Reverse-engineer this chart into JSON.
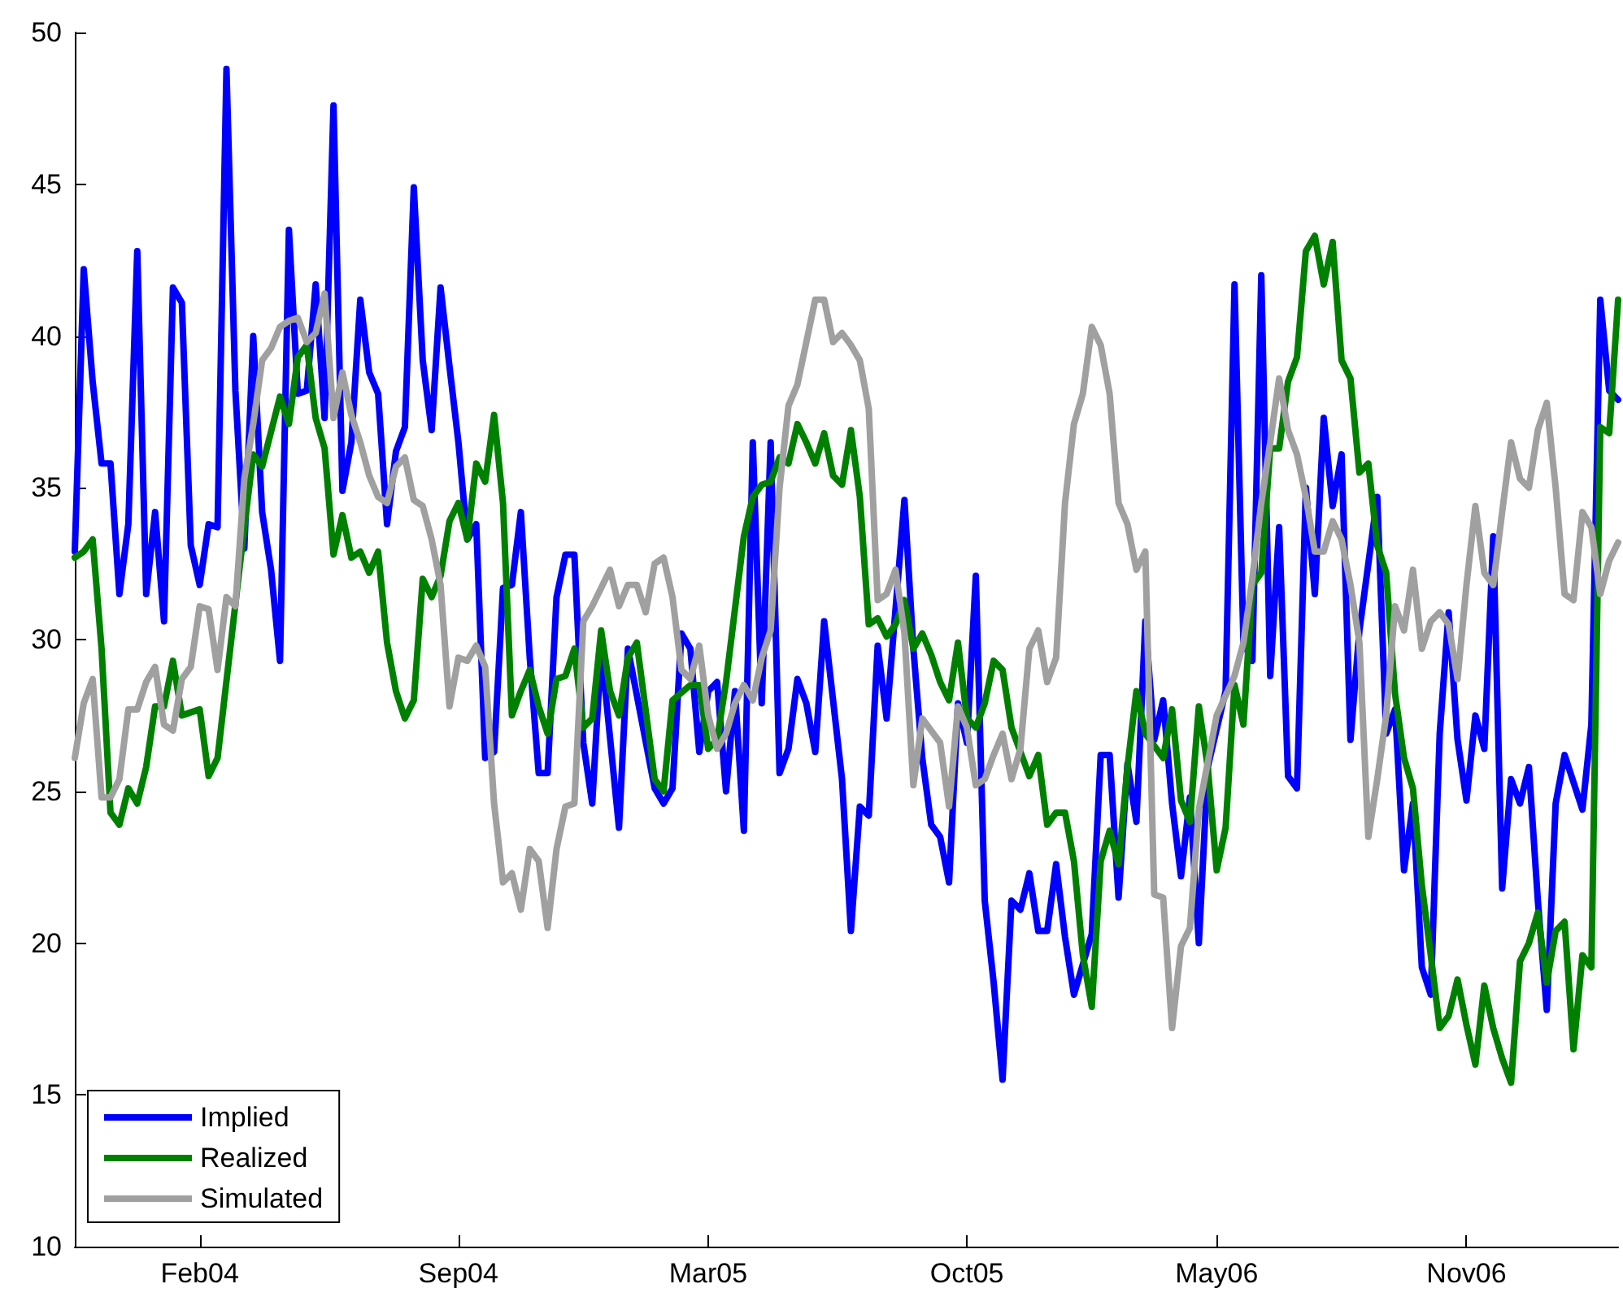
{
  "chart_data": {
    "type": "line",
    "ylim": [
      10,
      50
    ],
    "categories": [
      null,
      null,
      null,
      null,
      null,
      null,
      null,
      null,
      null,
      null,
      null,
      null,
      null,
      null,
      "Feb04",
      null,
      null,
      null,
      null,
      null,
      null,
      null,
      null,
      null,
      null,
      null,
      null,
      null,
      null,
      null,
      null,
      null,
      null,
      null,
      null,
      null,
      null,
      null,
      null,
      null,
      null,
      null,
      null,
      "Sep04",
      null,
      null,
      null,
      null,
      null,
      null,
      null,
      null,
      null,
      null,
      null,
      null,
      null,
      null,
      null,
      null,
      null,
      null,
      null,
      null,
      null,
      null,
      null,
      null,
      null,
      null,
      null,
      "Mar05",
      null,
      null,
      null,
      null,
      null,
      null,
      null,
      null,
      null,
      null,
      null,
      null,
      null,
      null,
      null,
      null,
      null,
      null,
      null,
      null,
      null,
      null,
      null,
      null,
      null,
      null,
      null,
      null,
      "Oct05",
      null,
      null,
      null,
      null,
      null,
      null,
      null,
      null,
      null,
      null,
      null,
      null,
      null,
      null,
      null,
      null,
      null,
      null,
      null,
      null,
      null,
      null,
      null,
      null,
      null,
      null,
      null,
      "May06",
      null,
      null,
      null,
      null,
      null,
      null,
      null,
      null,
      null,
      null,
      null,
      null,
      null,
      null,
      null,
      null,
      null,
      null,
      null,
      null,
      null,
      null,
      null,
      null,
      null,
      null,
      null,
      "Nov06",
      null,
      null,
      null,
      null,
      null,
      null,
      null,
      null,
      null,
      null,
      null,
      null,
      null,
      null,
      null,
      null,
      null
    ],
    "yticks": [
      10,
      15,
      20,
      25,
      30,
      35,
      40,
      45,
      50
    ],
    "legend": "bottom left",
    "marker": "none",
    "line_style": "solid",
    "series": [
      {
        "name": "Implied",
        "color": "#0000ff",
        "values": [
          32.9,
          42.2,
          38.5,
          35.8,
          35.8,
          31.5,
          33.8,
          42.8,
          31.5,
          34.2,
          30.6,
          41.6,
          41.1,
          33.1,
          31.8,
          33.8,
          33.7,
          48.8,
          38.2,
          33.0,
          40.0,
          34.2,
          32.3,
          29.3,
          43.5,
          38.1,
          38.2,
          41.7,
          37.3,
          47.6,
          34.9,
          36.5,
          41.2,
          38.8,
          38.1,
          33.8,
          36.2,
          37.0,
          44.9,
          39.2,
          36.9,
          41.6,
          39.0,
          36.5,
          33.3,
          33.8,
          26.1,
          26.3,
          31.7,
          31.8,
          34.2,
          29.4,
          25.6,
          25.6,
          31.4,
          32.8,
          32.8,
          26.6,
          24.6,
          29.7,
          null,
          23.8,
          29.7,
          null,
          null,
          25.1,
          24.6,
          25.1,
          30.2,
          29.7,
          26.3,
          28.3,
          28.6,
          25.0,
          28.3,
          23.7,
          36.5,
          27.9,
          36.5,
          25.6,
          26.4,
          28.7,
          27.9,
          26.3,
          30.6,
          28.0,
          25.4,
          20.4,
          24.5,
          24.2,
          29.8,
          27.4,
          null,
          34.6,
          29.7,
          26.1,
          23.9,
          23.5,
          22.0,
          27.9,
          26.6,
          32.1,
          21.4,
          18.7,
          15.5,
          21.4,
          21.1,
          22.3,
          20.4,
          20.4,
          22.6,
          20.2,
          18.3,
          null,
          20.3,
          26.2,
          26.2,
          21.5,
          25.9,
          24.0,
          30.6,
          26.7,
          28.0,
          24.6,
          22.2,
          24.8,
          20.0,
          25.8,
          null,
          28.3,
          41.7,
          29.9,
          29.3,
          42.0,
          28.8,
          33.7,
          25.5,
          25.1,
          35.0,
          31.5,
          37.3,
          34.4,
          36.1,
          26.7,
          30.3,
          null,
          34.7,
          26.9,
          27.7,
          22.4,
          24.6,
          19.2,
          18.3,
          26.9,
          30.9,
          26.7,
          24.7,
          27.5,
          26.4,
          33.4,
          21.8,
          25.4,
          24.6,
          25.8,
          21.4,
          17.8,
          24.6,
          26.2,
          null,
          24.4,
          27.2,
          41.2,
          38.2,
          37.9
        ]
      },
      {
        "name": "Realized",
        "color": "#008000",
        "values": [
          32.7,
          32.9,
          33.3,
          29.7,
          24.3,
          23.9,
          25.1,
          24.6,
          25.8,
          27.8,
          27.8,
          29.3,
          27.5,
          null,
          27.7,
          25.5,
          26.1,
          null,
          null,
          33.7,
          36.1,
          35.7,
          null,
          38.0,
          37.1,
          39.3,
          39.7,
          37.3,
          36.3,
          32.8,
          34.1,
          32.7,
          32.9,
          32.2,
          32.9,
          29.9,
          28.3,
          27.4,
          28.0,
          32.0,
          31.4,
          32.1,
          33.9,
          34.5,
          33.3,
          35.8,
          35.2,
          37.4,
          34.5,
          27.5,
          28.3,
          29.0,
          27.8,
          26.9,
          28.7,
          28.8,
          29.7,
          27.1,
          27.4,
          30.3,
          28.3,
          27.5,
          29.4,
          29.9,
          null,
          25.4,
          25.0,
          28.0,
          null,
          28.5,
          28.5,
          26.4,
          26.7,
          28.6,
          null,
          33.4,
          34.7,
          35.1,
          35.2,
          36.0,
          35.8,
          37.1,
          36.5,
          35.8,
          36.8,
          35.4,
          35.1,
          36.9,
          34.7,
          30.5,
          30.7,
          30.1,
          30.5,
          31.3,
          29.7,
          30.2,
          29.5,
          28.6,
          28.0,
          29.9,
          27.4,
          27.1,
          27.9,
          29.3,
          29.0,
          27.1,
          26.3,
          25.5,
          26.2,
          23.9,
          24.3,
          24.3,
          22.7,
          19.6,
          17.9,
          22.7,
          23.7,
          22.6,
          25.8,
          28.3,
          26.9,
          null,
          26.1,
          27.7,
          24.7,
          24.0,
          27.8,
          25.8,
          22.4,
          23.8,
          28.5,
          27.2,
          31.8,
          32.2,
          36.3,
          36.3,
          38.5,
          39.3,
          42.8,
          43.3,
          41.7,
          43.1,
          39.2,
          38.6,
          35.5,
          35.8,
          33.1,
          32.2,
          28.2,
          26.1,
          25.1,
          21.9,
          19.6,
          17.2,
          17.6,
          18.8,
          17.3,
          16.0,
          18.6,
          17.2,
          16.2,
          15.4,
          19.4,
          20.0,
          21.0,
          18.7,
          20.4,
          20.7,
          16.5,
          19.6,
          19.2,
          37.0,
          36.8,
          41.2
        ]
      },
      {
        "name": "Simulated",
        "color": "#a0a0a0",
        "values": [
          26.1,
          27.9,
          28.7,
          24.8,
          24.8,
          25.4,
          27.7,
          27.7,
          28.6,
          29.1,
          27.2,
          27.0,
          28.7,
          29.1,
          31.1,
          31.0,
          29.0,
          31.4,
          31.1,
          35.3,
          37.1,
          39.2,
          39.6,
          40.3,
          40.5,
          40.6,
          39.8,
          40.1,
          41.4,
          37.3,
          38.8,
          37.4,
          36.5,
          35.4,
          34.7,
          34.5,
          35.7,
          36.0,
          34.6,
          34.4,
          33.3,
          31.8,
          27.8,
          29.4,
          29.3,
          29.8,
          29.1,
          24.6,
          22.0,
          22.3,
          21.1,
          23.1,
          22.7,
          20.5,
          23.1,
          24.5,
          24.6,
          30.6,
          31.1,
          null,
          32.3,
          31.1,
          31.8,
          31.8,
          30.9,
          32.5,
          32.7,
          31.4,
          29.0,
          28.7,
          29.8,
          27.5,
          26.4,
          26.9,
          27.9,
          28.5,
          28.0,
          29.4,
          30.3,
          35.0,
          37.7,
          38.4,
          39.8,
          41.2,
          41.2,
          39.8,
          40.1,
          39.7,
          39.2,
          37.6,
          31.3,
          31.5,
          32.3,
          30.2,
          25.2,
          27.4,
          27.0,
          26.6,
          24.5,
          27.8,
          27.1,
          25.2,
          25.4,
          26.2,
          26.9,
          25.4,
          26.4,
          29.7,
          30.3,
          28.6,
          29.4,
          34.5,
          37.1,
          38.1,
          40.3,
          39.7,
          38.1,
          34.5,
          33.8,
          32.3,
          32.9,
          21.6,
          21.5,
          17.2,
          19.9,
          20.5,
          24.4,
          null,
          27.5,
          null,
          28.8,
          29.9,
          32.0,
          34.5,
          36.5,
          38.6,
          36.9,
          36.1,
          34.7,
          32.9,
          32.9,
          33.9,
          33.3,
          31.8,
          29.9,
          23.5,
          25.4,
          27.5,
          31.1,
          30.3,
          32.3,
          29.7,
          30.6,
          30.9,
          30.5,
          28.7,
          31.8,
          34.4,
          32.2,
          31.8,
          34.2,
          36.5,
          35.3,
          35.0,
          36.9,
          37.8,
          35.0,
          31.5,
          31.3,
          34.2,
          33.7,
          31.5,
          32.6,
          33.2
        ]
      }
    ]
  }
}
